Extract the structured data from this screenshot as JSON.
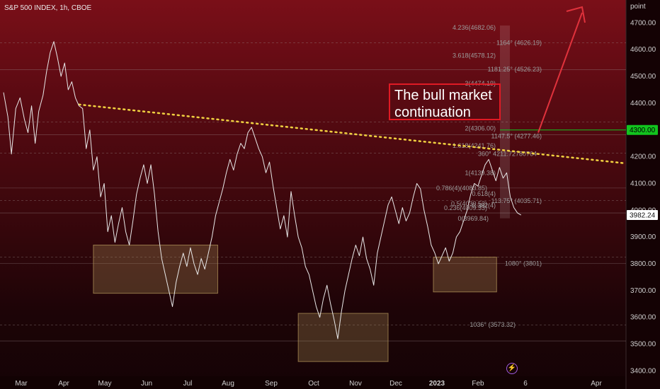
{
  "header": {
    "title": "S&P 500 INDEX, 1h, CBOE",
    "unit": "point"
  },
  "callout": {
    "line1": "The bull market",
    "line2": " continuation"
  },
  "colors": {
    "accent_green": "#12c41e",
    "arrow_red": "#e0323c",
    "trend_yellow": "#f0d040",
    "box_tan": "#b79a5c"
  },
  "chart_data": {
    "type": "line",
    "title": "S&P 500 INDEX, 1h, CBOE",
    "x_ticks": [
      "Mar",
      "Apr",
      "May",
      "Jun",
      "Jul",
      "Aug",
      "Sep",
      "Oct",
      "Nov",
      "Dec",
      "2023",
      "Feb",
      "6",
      "Apr"
    ],
    "ylim": [
      3380,
      4780
    ],
    "y_ticks": [
      3400,
      3500,
      3600,
      3700,
      3800,
      3900,
      4000,
      4100,
      4200,
      4300,
      4400,
      4500,
      4600,
      4700
    ],
    "y_tick_labels": [
      "3400.00",
      "3500.00",
      "3600.00",
      "3700.00",
      "3800.00",
      "3900.00",
      "4000.00",
      "4100.00",
      "4200.00",
      "4300.00",
      "4400.00",
      "4500.00",
      "4600.00",
      "4700.00"
    ],
    "price_badges": [
      {
        "label": "4300.00",
        "value": 4300,
        "style": "green"
      },
      {
        "label": "3982.24",
        "value": 3982.24,
        "style": "current"
      }
    ],
    "horizontal_lines": [
      4625,
      4525,
      4330,
      4282,
      4213,
      4083,
      4036,
      3990,
      3825,
      3801,
      3572,
      3512
    ],
    "series": [
      {
        "values": [
          [
            0,
            4440
          ],
          [
            0.6,
            4350
          ],
          [
            1.1,
            4210
          ],
          [
            1.7,
            4380
          ],
          [
            2.3,
            4420
          ],
          [
            2.9,
            4340
          ],
          [
            3.4,
            4290
          ],
          [
            3.9,
            4390
          ],
          [
            4.4,
            4250
          ],
          [
            4.9,
            4370
          ],
          [
            5.5,
            4430
          ],
          [
            6.0,
            4520
          ],
          [
            6.5,
            4590
          ],
          [
            7.0,
            4630
          ],
          [
            7.5,
            4570
          ],
          [
            8.0,
            4500
          ],
          [
            8.5,
            4550
          ],
          [
            9.0,
            4450
          ],
          [
            9.5,
            4480
          ],
          [
            10.0,
            4420
          ],
          [
            10.5,
            4390
          ],
          [
            11.0,
            4380
          ],
          [
            11.5,
            4230
          ],
          [
            12.0,
            4300
          ],
          [
            12.5,
            4150
          ],
          [
            13.0,
            4200
          ],
          [
            13.5,
            4050
          ],
          [
            14.0,
            4100
          ],
          [
            14.5,
            3920
          ],
          [
            15.0,
            3980
          ],
          [
            15.5,
            3880
          ],
          [
            16.0,
            3950
          ],
          [
            16.5,
            4010
          ],
          [
            17.0,
            3920
          ],
          [
            17.5,
            3870
          ],
          [
            18.0,
            3960
          ],
          [
            18.5,
            4060
          ],
          [
            19.0,
            4120
          ],
          [
            19.5,
            4170
          ],
          [
            20.0,
            4100
          ],
          [
            20.5,
            4170
          ],
          [
            21.0,
            4060
          ],
          [
            21.5,
            3920
          ],
          [
            22.0,
            3820
          ],
          [
            22.5,
            3760
          ],
          [
            23.0,
            3700
          ],
          [
            23.5,
            3640
          ],
          [
            24.0,
            3730
          ],
          [
            24.5,
            3790
          ],
          [
            25.0,
            3840
          ],
          [
            25.5,
            3790
          ],
          [
            26.0,
            3860
          ],
          [
            26.5,
            3800
          ],
          [
            27.0,
            3760
          ],
          [
            27.5,
            3820
          ],
          [
            28.0,
            3780
          ],
          [
            28.5,
            3840
          ],
          [
            29.0,
            3900
          ],
          [
            29.5,
            3980
          ],
          [
            30.0,
            4030
          ],
          [
            30.5,
            4080
          ],
          [
            31.0,
            4140
          ],
          [
            31.5,
            4190
          ],
          [
            32.0,
            4150
          ],
          [
            32.5,
            4210
          ],
          [
            33.0,
            4250
          ],
          [
            33.5,
            4230
          ],
          [
            34.0,
            4290
          ],
          [
            34.5,
            4310
          ],
          [
            35.0,
            4270
          ],
          [
            35.5,
            4230
          ],
          [
            36.0,
            4200
          ],
          [
            36.5,
            4140
          ],
          [
            37.0,
            4180
          ],
          [
            37.5,
            4090
          ],
          [
            38.0,
            4010
          ],
          [
            38.5,
            3930
          ],
          [
            39.0,
            3980
          ],
          [
            39.5,
            3900
          ],
          [
            40.0,
            4070
          ],
          [
            40.5,
            3980
          ],
          [
            41.0,
            3900
          ],
          [
            41.5,
            3860
          ],
          [
            42.0,
            3790
          ],
          [
            42.5,
            3760
          ],
          [
            43.0,
            3700
          ],
          [
            43.5,
            3640
          ],
          [
            44.0,
            3600
          ],
          [
            44.5,
            3670
          ],
          [
            45.0,
            3720
          ],
          [
            45.5,
            3650
          ],
          [
            46.0,
            3590
          ],
          [
            46.5,
            3520
          ],
          [
            47.0,
            3620
          ],
          [
            47.5,
            3700
          ],
          [
            48.0,
            3760
          ],
          [
            48.5,
            3820
          ],
          [
            49.0,
            3870
          ],
          [
            49.5,
            3830
          ],
          [
            50.0,
            3900
          ],
          [
            50.5,
            3820
          ],
          [
            51.0,
            3780
          ],
          [
            51.5,
            3720
          ],
          [
            52.0,
            3840
          ],
          [
            52.5,
            3900
          ],
          [
            53.0,
            3960
          ],
          [
            53.5,
            4020
          ],
          [
            54.0,
            4050
          ],
          [
            54.5,
            4000
          ],
          [
            55.0,
            3950
          ],
          [
            55.5,
            4010
          ],
          [
            56.0,
            3960
          ],
          [
            56.5,
            3990
          ],
          [
            57.0,
            4050
          ],
          [
            57.5,
            4100
          ],
          [
            58.0,
            4080
          ],
          [
            58.5,
            4000
          ],
          [
            59.0,
            3940
          ],
          [
            59.5,
            3870
          ],
          [
            60.0,
            3840
          ],
          [
            60.5,
            3800
          ],
          [
            61.0,
            3830
          ],
          [
            61.5,
            3860
          ],
          [
            62.0,
            3810
          ],
          [
            62.5,
            3840
          ],
          [
            63.0,
            3900
          ],
          [
            63.5,
            3920
          ],
          [
            64.0,
            3960
          ],
          [
            64.5,
            4000
          ],
          [
            65.0,
            4060
          ],
          [
            65.5,
            4100
          ],
          [
            66.0,
            4090
          ],
          [
            66.5,
            4130
          ],
          [
            67.0,
            4170
          ],
          [
            67.5,
            4190
          ],
          [
            68.0,
            4150
          ],
          [
            68.5,
            4110
          ],
          [
            69.0,
            4160
          ],
          [
            69.5,
            4120
          ],
          [
            70.0,
            4140
          ],
          [
            70.5,
            4050
          ],
          [
            71.0,
            4010
          ],
          [
            71.5,
            3990
          ],
          [
            72.0,
            3982
          ]
        ]
      }
    ],
    "trendline": {
      "from": [
        10.5,
        4395
      ],
      "to": [
        100,
        4175
      ]
    },
    "zones": [
      {
        "x": [
          12.5,
          29.8
        ],
        "y": [
          3690,
          3870
        ]
      },
      {
        "x": [
          41.0,
          53.5
        ],
        "y": [
          3435,
          3615
        ]
      },
      {
        "x": [
          59.8,
          68.6
        ],
        "y": [
          3695,
          3825
        ]
      }
    ],
    "fib_labels": [
      "4.236(4682.06)",
      "1164° (4626.19)",
      "3.618(4578.12)",
      "1181.25° (4526.23)",
      "3(4474.19)",
      "2(4306.00)",
      "1147.5° (4277.46)",
      "1.618(4241.76)",
      "360° 4211.72780764",
      "1(4139.38)",
      "0.786(4)(4083.85)",
      "0.618(4)",
      "113.75° (4035.71)",
      "0.5(4030.53)",
      "0.382(4)",
      "0.236(4009.33)",
      "0(3969.84)",
      "1080° (3801)",
      "1036° (3573.32)"
    ]
  }
}
